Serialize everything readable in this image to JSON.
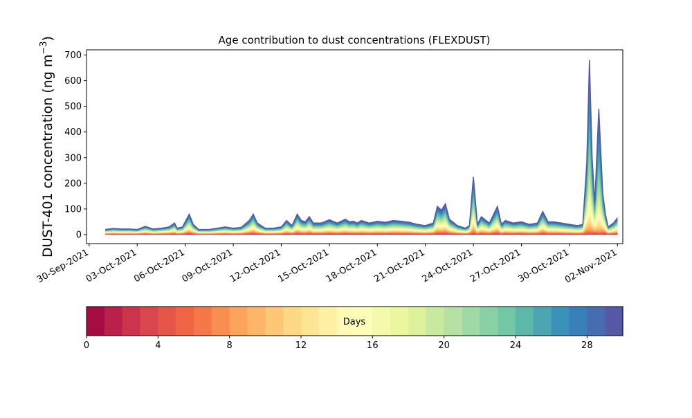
{
  "chart_data": {
    "type": "area",
    "stacked": true,
    "title": "Age contribution to dust concentrations (FLEXDUST)",
    "ylabel_main": "DUST-401 concentration (ng m",
    "ylabel_sup": "−3",
    "ylabel_close": ")",
    "xlabel": "",
    "x_start": "2021-09-29",
    "x_end": "2021-11-02",
    "xlim": [
      "2021-09-29T20:00",
      "2021-11-02T08:00"
    ],
    "ylim": [
      -35,
      720
    ],
    "yticks": [
      0,
      100,
      200,
      300,
      400,
      500,
      600,
      700
    ],
    "xticks": [
      {
        "date": "2021-09-30",
        "label": "30-Sep-2021"
      },
      {
        "date": "2021-10-03",
        "label": "03-Oct-2021"
      },
      {
        "date": "2021-10-06",
        "label": "06-Oct-2021"
      },
      {
        "date": "2021-10-09",
        "label": "09-Oct-2021"
      },
      {
        "date": "2021-10-12",
        "label": "12-Oct-2021"
      },
      {
        "date": "2021-10-15",
        "label": "15-Oct-2021"
      },
      {
        "date": "2021-10-18",
        "label": "18-Oct-2021"
      },
      {
        "date": "2021-10-21",
        "label": "21-Oct-2021"
      },
      {
        "date": "2021-10-24",
        "label": "24-Oct-2021"
      },
      {
        "date": "2021-10-27",
        "label": "27-Oct-2021"
      },
      {
        "date": "2021-10-30",
        "label": "30-Oct-2021"
      },
      {
        "date": "2021-11-02",
        "label": "02-Nov-2021"
      }
    ],
    "total_series": {
      "x": [
        "2021-10-01T00:00",
        "2021-10-01T06:00",
        "2021-10-01T12:00",
        "2021-10-02T00:00",
        "2021-10-02T12:00",
        "2021-10-03T00:00",
        "2021-10-03T12:00",
        "2021-10-04T00:00",
        "2021-10-04T12:00",
        "2021-10-05T00:00",
        "2021-10-05T08:00",
        "2021-10-05T12:00",
        "2021-10-05T20:00",
        "2021-10-06T06:00",
        "2021-10-06T12:00",
        "2021-10-06T20:00",
        "2021-10-07T00:00",
        "2021-10-07T12:00",
        "2021-10-08T00:00",
        "2021-10-08T12:00",
        "2021-10-09T00:00",
        "2021-10-09T12:00",
        "2021-10-10T00:00",
        "2021-10-10T06:00",
        "2021-10-10T12:00",
        "2021-10-11T00:00",
        "2021-10-11T12:00",
        "2021-10-12T00:00",
        "2021-10-12T08:00",
        "2021-10-12T16:00",
        "2021-10-13T00:00",
        "2021-10-13T06:00",
        "2021-10-13T12:00",
        "2021-10-13T18:00",
        "2021-10-14T00:00",
        "2021-10-14T12:00",
        "2021-10-15T00:00",
        "2021-10-15T12:00",
        "2021-10-16T00:00",
        "2021-10-16T06:00",
        "2021-10-16T12:00",
        "2021-10-16T18:00",
        "2021-10-17T00:00",
        "2021-10-17T12:00",
        "2021-10-18T00:00",
        "2021-10-18T12:00",
        "2021-10-19T00:00",
        "2021-10-19T12:00",
        "2021-10-20T00:00",
        "2021-10-20T12:00",
        "2021-10-21T00:00",
        "2021-10-21T12:00",
        "2021-10-21T18:00",
        "2021-10-22T00:00",
        "2021-10-22T06:00",
        "2021-10-22T12:00",
        "2021-10-23T00:00",
        "2021-10-23T12:00",
        "2021-10-23T18:00",
        "2021-10-24T00:00",
        "2021-10-24T06:00",
        "2021-10-24T12:00",
        "2021-10-25T00:00",
        "2021-10-25T12:00",
        "2021-10-25T18:00",
        "2021-10-26T00:00",
        "2021-10-26T12:00",
        "2021-10-27T00:00",
        "2021-10-27T12:00",
        "2021-10-28T00:00",
        "2021-10-28T08:00",
        "2021-10-28T16:00",
        "2021-10-29T00:00",
        "2021-10-29T12:00",
        "2021-10-30T00:00",
        "2021-10-30T12:00",
        "2021-10-30T20:00",
        "2021-10-31T02:00",
        "2021-10-31T06:00",
        "2021-10-31T10:00",
        "2021-10-31T14:00",
        "2021-10-31T20:00",
        "2021-11-01T02:00",
        "2021-11-01T06:00",
        "2021-11-01T10:00",
        "2021-11-01T18:00",
        "2021-11-02T00:00"
      ],
      "y": [
        20,
        22,
        24,
        22,
        22,
        20,
        32,
        22,
        25,
        30,
        45,
        25,
        30,
        80,
        40,
        20,
        20,
        20,
        25,
        30,
        25,
        28,
        55,
        80,
        45,
        25,
        25,
        30,
        55,
        35,
        80,
        55,
        50,
        70,
        45,
        45,
        58,
        45,
        60,
        50,
        52,
        45,
        55,
        45,
        52,
        48,
        55,
        52,
        48,
        40,
        35,
        45,
        110,
        95,
        120,
        60,
        35,
        25,
        35,
        225,
        40,
        70,
        45,
        110,
        40,
        55,
        45,
        50,
        40,
        45,
        90,
        50,
        50,
        45,
        40,
        35,
        40,
        280,
        680,
        300,
        120,
        490,
        160,
        80,
        30,
        45,
        65
      ]
    },
    "colorbar": {
      "label": "Days",
      "range": [
        0,
        30
      ],
      "ticks": [
        0,
        4,
        8,
        12,
        16,
        20,
        24,
        28
      ],
      "bins": 30,
      "colormap": "Spectral"
    }
  }
}
